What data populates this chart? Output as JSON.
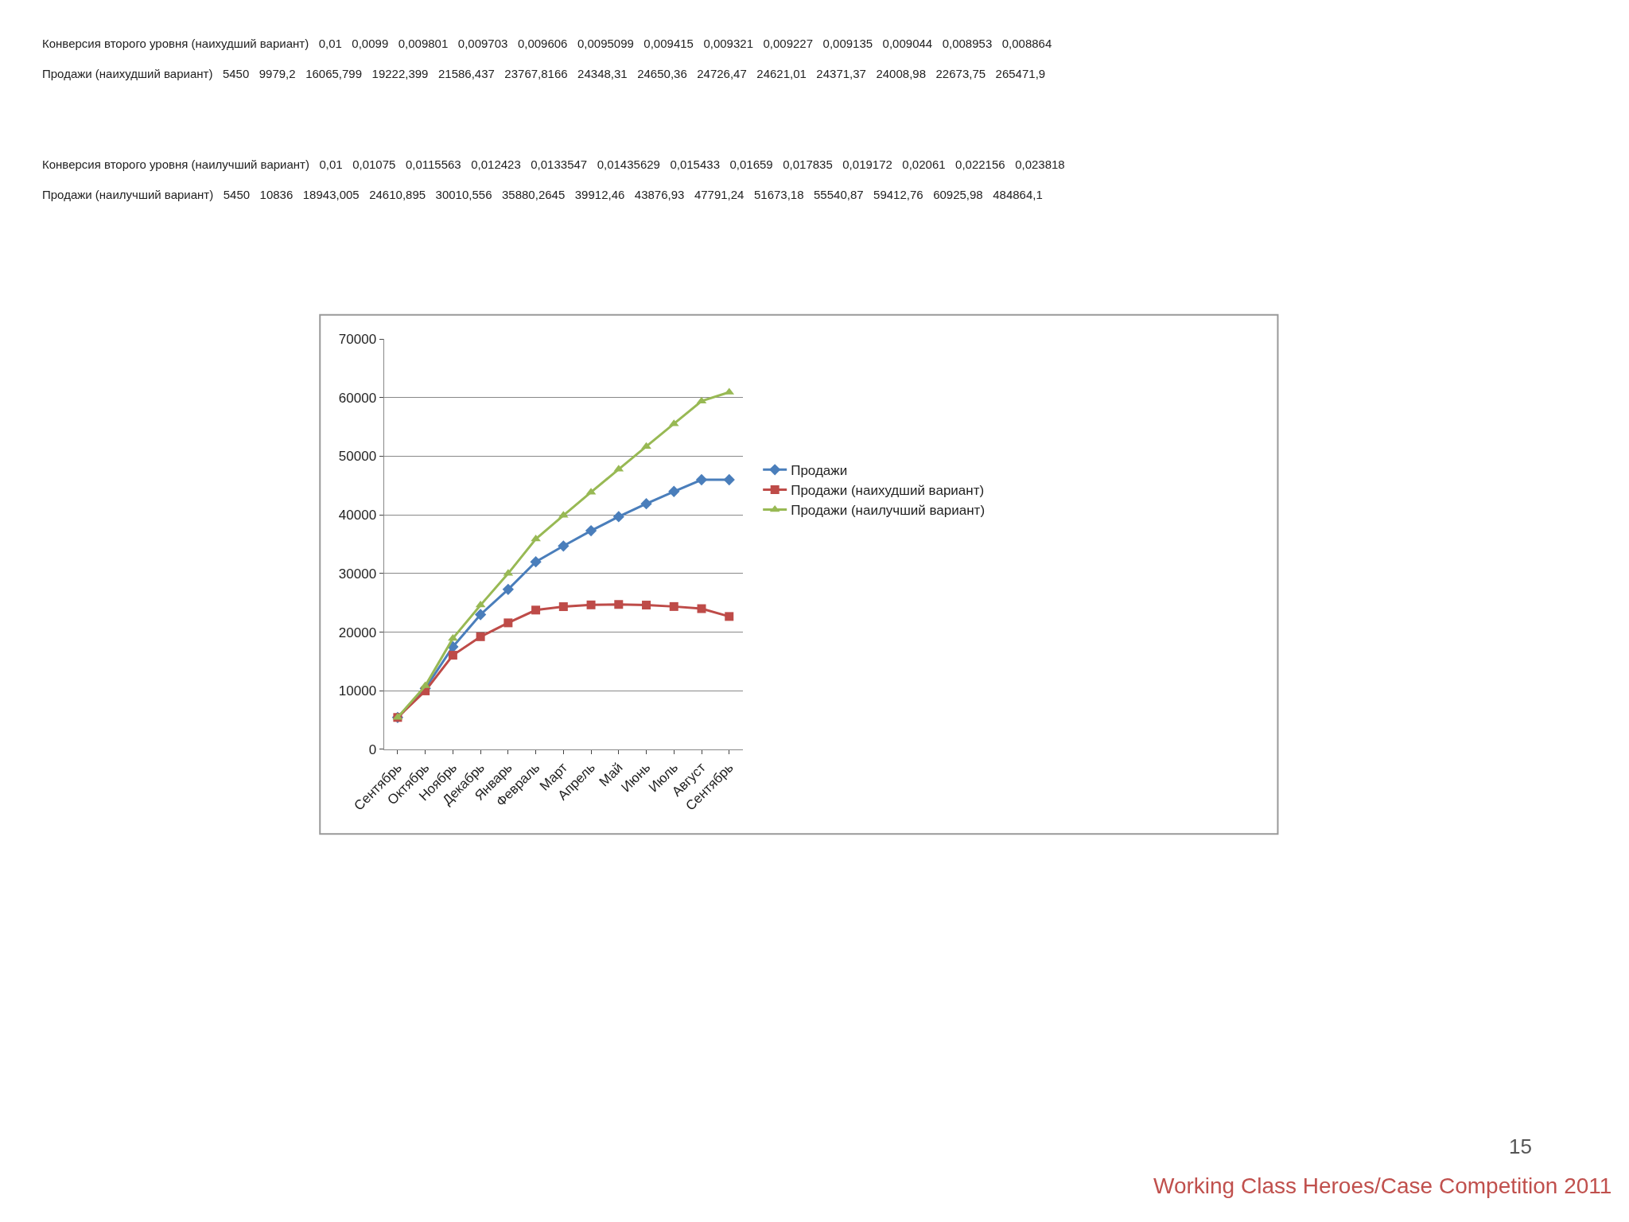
{
  "chart_data": {
    "type": "line",
    "categories": [
      "Сентябрь",
      "Октябрь",
      "Ноябрь",
      "Декабрь",
      "Январь",
      "Февраль",
      "Март",
      "Апрель",
      "Май",
      "Июнь",
      "Июль",
      "Август",
      "Сентябрь"
    ],
    "series": [
      {
        "name": "Продажи",
        "color": "#4a7ebb",
        "marker": "diamond",
        "values": [
          5450,
          10400,
          17500,
          23000,
          27300,
          32000,
          34700,
          37300,
          39700,
          41900,
          44000,
          46000,
          46000
        ]
      },
      {
        "name": "Продажи (наихудший вариант)",
        "color": "#be4b48",
        "marker": "square",
        "values": [
          5450,
          9979.2,
          16065.799,
          19222.399,
          21586.437,
          23767.8166,
          24348.31,
          24650.36,
          24726.47,
          24621.01,
          24371.37,
          24008.98,
          22673.75
        ]
      },
      {
        "name": "Продажи (наилучший вариант)",
        "color": "#98b954",
        "marker": "triangle",
        "values": [
          5450,
          10836,
          18943.005,
          24610.895,
          30010.556,
          35880.2645,
          39912.46,
          43876.93,
          47791.24,
          51673.18,
          55540.87,
          59412.76,
          60925.98
        ]
      }
    ],
    "ylim": [
      0,
      70000
    ],
    "yticks": [
      0,
      10000,
      20000,
      30000,
      40000,
      50000,
      60000,
      70000
    ],
    "grid": "y",
    "legend": "right",
    "line_style": "solid",
    "annotations": [
      "Конверсия второго уровня (наихудший вариант)   0,01   0,0099   0,009801   0,009703   0,009606   0,0095099   0,009415   0,009321   0,009227   0,009135   0,009044   0,008953   0,008864",
      "Продажи (наихудший вариант)   5450   9979,2   16065,799   19222,399   21586,437   23767,8166   24348,31   24650,36   24726,47   24621,01   24371,37   24008,98   22673,75   265471,9",
      "Конверсия второго уровня (наилучший вариант)   0,01   0,01075   0,0115563   0,012423   0,0133547   0,01435629   0,015433   0,01659   0,017835   0,019172   0,02061   0,022156   0,023818",
      "Продажи (наилучший вариант)   5450   10836   18943,005   24610,895   30010,556   35880,2645   39912,46   43876,93   47791,24   51673,18   55540,87   59412,76   60925,98   484864,1",
      "15",
      "Working Class Heroes/Case Competition 2011"
    ]
  }
}
